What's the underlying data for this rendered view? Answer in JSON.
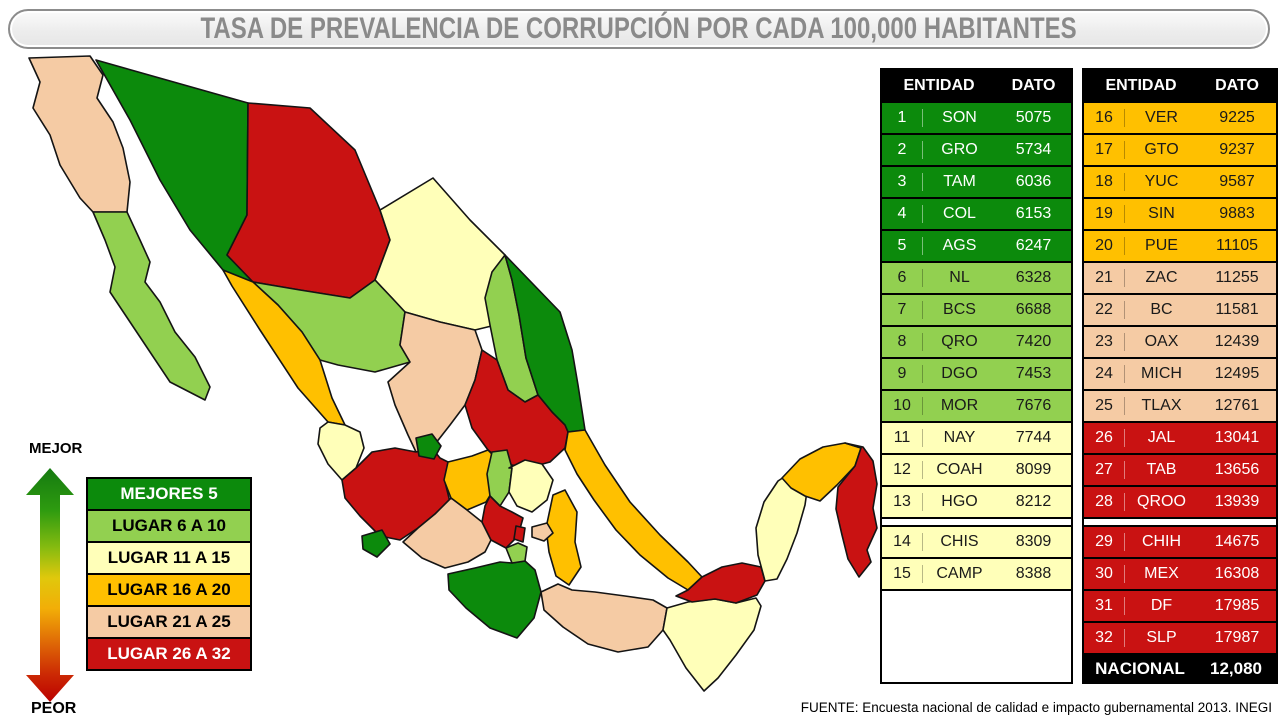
{
  "title": "TASA DE PREVALENCIA DE CORRUPCIÓN POR CADA 100,000 HABITANTES",
  "footer": {
    "source": "FUENTE: Encuesta nacional de calidad e impacto gubernamental 2013. INEGI"
  },
  "colors": {
    "best5": "#0C8A0C",
    "l6_10": "#92D050",
    "l11_15": "#FFFFB9",
    "l16_20": "#FFC000",
    "l21_25": "#F5CBA4",
    "l26_32": "#C91212",
    "header_bg": "#000000",
    "national_bg": "#000000"
  },
  "legend": {
    "better_label": "MEJOR",
    "worse_label": "PEOR",
    "items": [
      {
        "label": "MEJORES 5",
        "category": "best5"
      },
      {
        "label": "LUGAR 6 A 10",
        "category": "l6_10"
      },
      {
        "label": "LUGAR 11 A 15",
        "category": "l11_15"
      },
      {
        "label": "LUGAR 16 A 20",
        "category": "l16_20"
      },
      {
        "label": "LUGAR 21 A 25",
        "category": "l21_25"
      },
      {
        "label": "LUGAR 26 A 32",
        "category": "l26_32"
      }
    ]
  },
  "table": {
    "headers": {
      "entity": "ENTIDAD",
      "value": "DATO"
    },
    "gap_after_index": 12,
    "left_rows": [
      {
        "rank": "1",
        "entity": "SON",
        "value": "5075",
        "category": "best5"
      },
      {
        "rank": "2",
        "entity": "GRO",
        "value": "5734",
        "category": "best5"
      },
      {
        "rank": "3",
        "entity": "TAM",
        "value": "6036",
        "category": "best5"
      },
      {
        "rank": "4",
        "entity": "COL",
        "value": "6153",
        "category": "best5"
      },
      {
        "rank": "5",
        "entity": "AGS",
        "value": "6247",
        "category": "best5"
      },
      {
        "rank": "6",
        "entity": "NL",
        "value": "6328",
        "category": "l6_10"
      },
      {
        "rank": "7",
        "entity": "BCS",
        "value": "6688",
        "category": "l6_10"
      },
      {
        "rank": "8",
        "entity": "QRO",
        "value": "7420",
        "category": "l6_10"
      },
      {
        "rank": "9",
        "entity": "DGO",
        "value": "7453",
        "category": "l6_10"
      },
      {
        "rank": "10",
        "entity": "MOR",
        "value": "7676",
        "category": "l6_10"
      },
      {
        "rank": "11",
        "entity": "NAY",
        "value": "7744",
        "category": "l11_15"
      },
      {
        "rank": "12",
        "entity": "COAH",
        "value": "8099",
        "category": "l11_15"
      },
      {
        "rank": "13",
        "entity": "HGO",
        "value": "8212",
        "category": "l11_15"
      },
      {
        "rank": "14",
        "entity": "CHIS",
        "value": "8309",
        "category": "l11_15"
      },
      {
        "rank": "15",
        "entity": "CAMP",
        "value": "8388",
        "category": "l11_15"
      }
    ],
    "right_rows": [
      {
        "rank": "16",
        "entity": "VER",
        "value": "9225",
        "category": "l16_20"
      },
      {
        "rank": "17",
        "entity": "GTO",
        "value": "9237",
        "category": "l16_20"
      },
      {
        "rank": "18",
        "entity": "YUC",
        "value": "9587",
        "category": "l16_20"
      },
      {
        "rank": "19",
        "entity": "SIN",
        "value": "9883",
        "category": "l16_20"
      },
      {
        "rank": "20",
        "entity": "PUE",
        "value": "11105",
        "category": "l16_20"
      },
      {
        "rank": "21",
        "entity": "ZAC",
        "value": "11255",
        "category": "l21_25"
      },
      {
        "rank": "22",
        "entity": "BC",
        "value": "11581",
        "category": "l21_25"
      },
      {
        "rank": "23",
        "entity": "OAX",
        "value": "12439",
        "category": "l21_25"
      },
      {
        "rank": "24",
        "entity": "MICH",
        "value": "12495",
        "category": "l21_25"
      },
      {
        "rank": "25",
        "entity": "TLAX",
        "value": "12761",
        "category": "l21_25"
      },
      {
        "rank": "26",
        "entity": "JAL",
        "value": "13041",
        "category": "l26_32"
      },
      {
        "rank": "27",
        "entity": "TAB",
        "value": "13656",
        "category": "l26_32"
      },
      {
        "rank": "28",
        "entity": "QROO",
        "value": "13939",
        "category": "l26_32"
      },
      {
        "rank": "29",
        "entity": "CHIH",
        "value": "14675",
        "category": "l26_32"
      },
      {
        "rank": "30",
        "entity": "MEX",
        "value": "16308",
        "category": "l26_32"
      },
      {
        "rank": "31",
        "entity": "DF",
        "value": "17985",
        "category": "l26_32"
      },
      {
        "rank": "32",
        "entity": "SLP",
        "value": "17987",
        "category": "l26_32"
      }
    ],
    "national": {
      "label": "NACIONAL",
      "value": "12,080"
    }
  },
  "map": {
    "states": [
      {
        "abbr": "BC",
        "category": "l21_25"
      },
      {
        "abbr": "BCS",
        "category": "l6_10"
      },
      {
        "abbr": "SON",
        "category": "best5"
      },
      {
        "abbr": "CHIH",
        "category": "l26_32"
      },
      {
        "abbr": "COAH",
        "category": "l11_15"
      },
      {
        "abbr": "NL",
        "category": "l6_10"
      },
      {
        "abbr": "TAM",
        "category": "best5"
      },
      {
        "abbr": "DGO",
        "category": "l6_10"
      },
      {
        "abbr": "SIN",
        "category": "l16_20"
      },
      {
        "abbr": "ZAC",
        "category": "l21_25"
      },
      {
        "abbr": "SLP",
        "category": "l26_32"
      },
      {
        "abbr": "VER",
        "category": "l16_20"
      },
      {
        "abbr": "NAY",
        "category": "l11_15"
      },
      {
        "abbr": "JAL",
        "category": "l26_32"
      },
      {
        "abbr": "GTO",
        "category": "l16_20"
      },
      {
        "abbr": "QRO",
        "category": "l6_10"
      },
      {
        "abbr": "HGO",
        "category": "l11_15"
      },
      {
        "abbr": "MICH",
        "category": "l21_25"
      },
      {
        "abbr": "MEX",
        "category": "l26_32"
      },
      {
        "abbr": "PUE",
        "category": "l16_20"
      },
      {
        "abbr": "GRO",
        "category": "best5"
      },
      {
        "abbr": "OAX",
        "category": "l21_25"
      },
      {
        "abbr": "CHIS",
        "category": "l11_15"
      },
      {
        "abbr": "TAB",
        "category": "l26_32"
      },
      {
        "abbr": "CAMP",
        "category": "l11_15"
      },
      {
        "abbr": "YUC",
        "category": "l16_20"
      },
      {
        "abbr": "QROO",
        "category": "l26_32"
      },
      {
        "abbr": "COL",
        "category": "best5"
      },
      {
        "abbr": "AGS",
        "category": "best5"
      },
      {
        "abbr": "TLAX",
        "category": "l21_25"
      },
      {
        "abbr": "MOR",
        "category": "l6_10"
      },
      {
        "abbr": "DF",
        "category": "l26_32"
      }
    ]
  }
}
